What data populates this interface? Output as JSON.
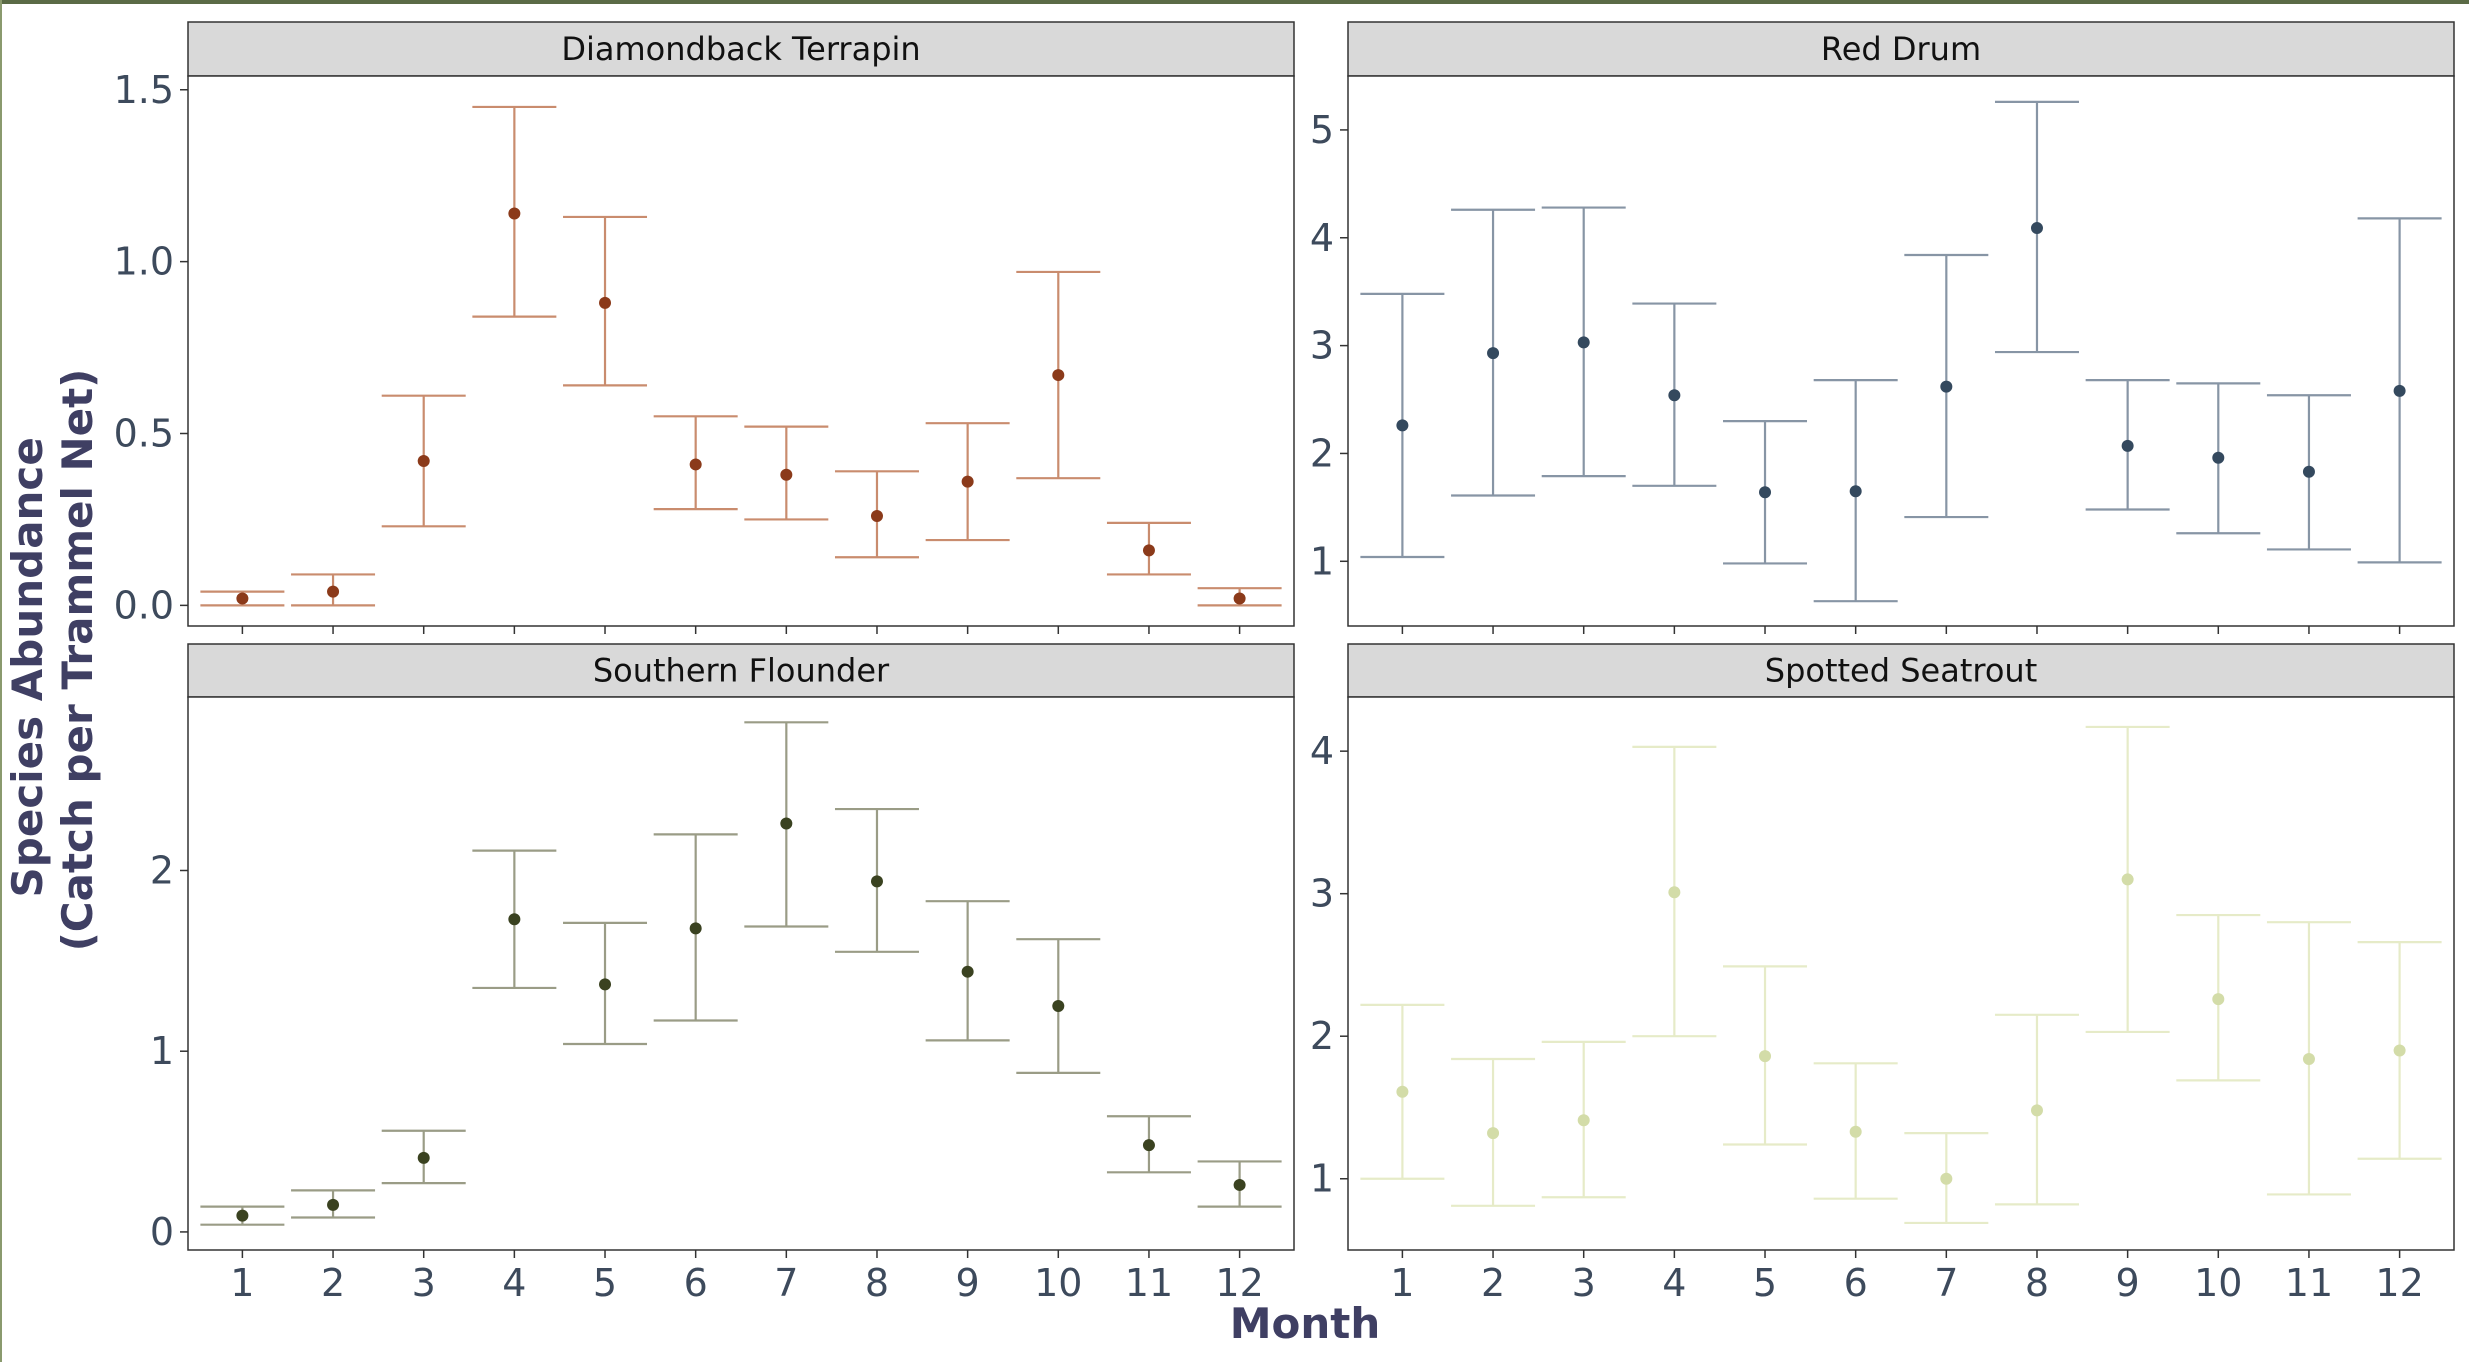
{
  "x_axis_title": "Month",
  "y_axis_title_lines": [
    "Species Abundance",
    "(Catch per Trammel Net)"
  ],
  "chart_data": [
    {
      "type": "scatter",
      "title": "Diamondback Terrapin",
      "color": "#8b3a1a",
      "bar_color": "#c98c6e",
      "ylim": [
        -0.06,
        1.54
      ],
      "yticks": [
        0.0,
        0.5,
        1.0,
        1.5
      ],
      "ytick_labels": [
        "0.0",
        "0.5",
        "1.0",
        "1.5"
      ],
      "x": [
        1,
        2,
        3,
        4,
        5,
        6,
        7,
        8,
        9,
        10,
        11,
        12
      ],
      "y": [
        0.02,
        0.04,
        0.42,
        1.14,
        0.88,
        0.41,
        0.38,
        0.26,
        0.36,
        0.67,
        0.16,
        0.02
      ],
      "lower": [
        0.0,
        0.0,
        0.23,
        0.84,
        0.64,
        0.28,
        0.25,
        0.14,
        0.19,
        0.37,
        0.09,
        0.0
      ],
      "upper": [
        0.04,
        0.09,
        0.61,
        1.45,
        1.13,
        0.55,
        0.52,
        0.39,
        0.53,
        0.97,
        0.24,
        0.05
      ]
    },
    {
      "type": "scatter",
      "title": "Red Drum",
      "color": "#34495e",
      "bar_color": "#8795a5",
      "ylim": [
        0.4,
        5.5
      ],
      "yticks": [
        1,
        2,
        3,
        4,
        5
      ],
      "ytick_labels": [
        "1",
        "2",
        "3",
        "4",
        "5"
      ],
      "x": [
        1,
        2,
        3,
        4,
        5,
        6,
        7,
        8,
        9,
        10,
        11,
        12
      ],
      "y": [
        2.26,
        2.93,
        3.03,
        2.54,
        1.64,
        1.65,
        2.62,
        4.09,
        2.07,
        1.96,
        1.83,
        2.58
      ],
      "lower": [
        1.04,
        1.61,
        1.79,
        1.7,
        0.98,
        0.63,
        1.41,
        2.94,
        1.48,
        1.26,
        1.11,
        0.99
      ],
      "upper": [
        3.48,
        4.26,
        4.28,
        3.39,
        2.3,
        2.68,
        3.84,
        5.26,
        2.68,
        2.65,
        2.54,
        4.18
      ]
    },
    {
      "type": "scatter",
      "title": "Southern Flounder",
      "color": "#3a4220",
      "bar_color": "#9a9c86",
      "ylim": [
        -0.1,
        2.96
      ],
      "yticks": [
        0,
        1,
        2
      ],
      "ytick_labels": [
        "0",
        "1",
        "2"
      ],
      "x": [
        1,
        2,
        3,
        4,
        5,
        6,
        7,
        8,
        9,
        10,
        11,
        12
      ],
      "y": [
        0.09,
        0.15,
        0.41,
        1.73,
        1.37,
        1.68,
        2.26,
        1.94,
        1.44,
        1.25,
        0.48,
        0.26
      ],
      "lower": [
        0.04,
        0.08,
        0.27,
        1.35,
        1.04,
        1.17,
        1.69,
        1.55,
        1.06,
        0.88,
        0.33,
        0.14
      ],
      "upper": [
        0.14,
        0.23,
        0.56,
        2.11,
        1.71,
        2.2,
        2.82,
        2.34,
        1.83,
        1.62,
        0.64,
        0.39
      ]
    },
    {
      "type": "scatter",
      "title": "Spotted Seatrout",
      "color": "#d3dca8",
      "bar_color": "#e6ebc8",
      "ylim": [
        0.5,
        4.38
      ],
      "yticks": [
        1,
        2,
        3,
        4
      ],
      "ytick_labels": [
        "1",
        "2",
        "3",
        "4"
      ],
      "x": [
        1,
        2,
        3,
        4,
        5,
        6,
        7,
        8,
        9,
        10,
        11,
        12
      ],
      "y": [
        1.61,
        1.32,
        1.41,
        3.01,
        1.86,
        1.33,
        1.0,
        1.48,
        3.1,
        2.26,
        1.84,
        1.9
      ],
      "lower": [
        1.0,
        0.81,
        0.87,
        2.0,
        1.24,
        0.86,
        0.69,
        0.82,
        2.03,
        1.69,
        0.89,
        1.14
      ],
      "upper": [
        2.22,
        1.84,
        1.96,
        4.03,
        2.49,
        1.81,
        1.32,
        2.15,
        4.17,
        2.85,
        2.8,
        2.66
      ]
    }
  ],
  "x_tick_labels": [
    "1",
    "2",
    "3",
    "4",
    "5",
    "6",
    "7",
    "8",
    "9",
    "10",
    "11",
    "12"
  ]
}
